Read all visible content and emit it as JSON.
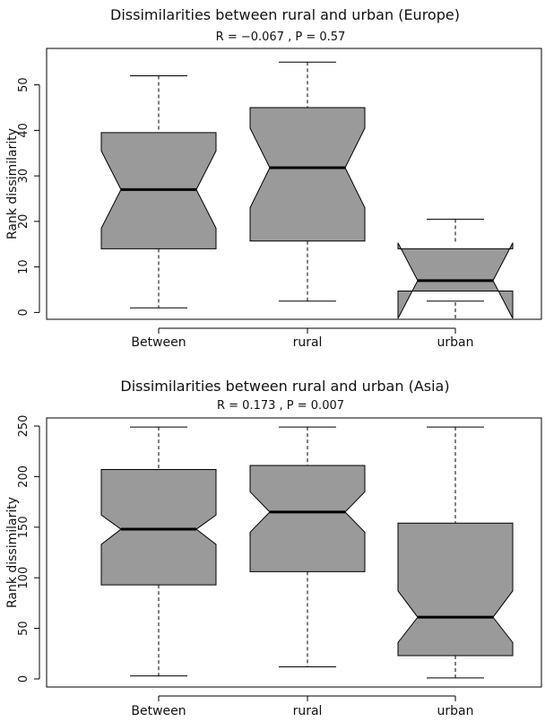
{
  "chart_data": [
    {
      "type": "boxplot",
      "notched": true,
      "title": "Dissimilarities between rural and urban (Europe)",
      "subtitle": "R = −0.067 ,  P = 0.57",
      "ylabel": "Rank dissimilarity",
      "ylim": [
        -1.5,
        58
      ],
      "yticks": [
        0,
        10,
        20,
        30,
        40,
        50
      ],
      "categories": [
        "Between",
        "rural",
        "urban"
      ],
      "boxes": [
        {
          "min": 1,
          "q1": 14,
          "median": 27,
          "q3": 39.5,
          "max": 52,
          "notch_low": 18.5,
          "notch_high": 35.5
        },
        {
          "min": 2.5,
          "q1": 15.7,
          "median": 31.8,
          "q3": 45,
          "max": 55,
          "notch_low": 23,
          "notch_high": 40.5
        },
        {
          "min": 2.5,
          "q1": 4.7,
          "median": 7,
          "q3": 14,
          "max": 20.5,
          "notch_low": -1.3,
          "notch_high": 15.3
        }
      ]
    },
    {
      "type": "boxplot",
      "notched": true,
      "title": "Dissimilarities between rural and urban (Asia)",
      "subtitle": "R = 0.173 ,  P = 0.007",
      "ylabel": "Rank dissimilarity",
      "ylim": [
        -8,
        258
      ],
      "yticks": [
        0,
        50,
        100,
        150,
        200,
        250
      ],
      "categories": [
        "Between",
        "rural",
        "urban"
      ],
      "boxes": [
        {
          "min": 3,
          "q1": 93,
          "median": 148,
          "q3": 207,
          "max": 249,
          "notch_low": 133,
          "notch_high": 162
        },
        {
          "min": 12,
          "q1": 106,
          "median": 165,
          "q3": 211,
          "max": 249,
          "notch_low": 145,
          "notch_high": 185
        },
        {
          "min": 1,
          "q1": 23,
          "median": 61,
          "q3": 154,
          "max": 249,
          "notch_low": 36,
          "notch_high": 87
        }
      ]
    }
  ]
}
